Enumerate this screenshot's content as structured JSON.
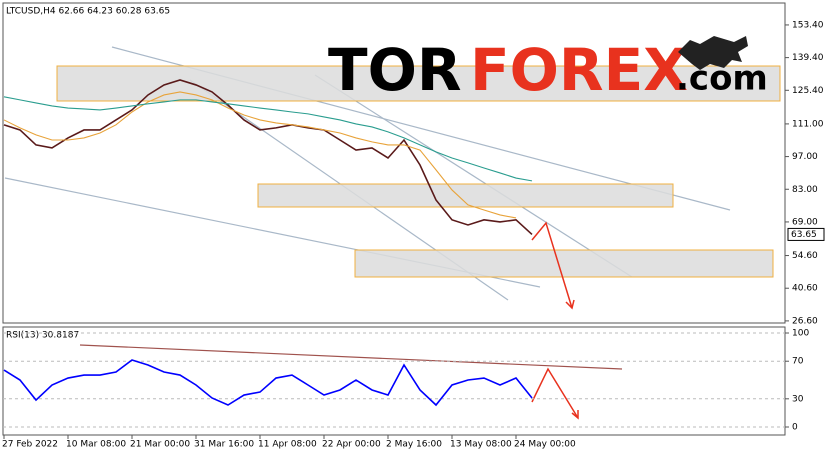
{
  "logo": {
    "part1": "TOR",
    "part2": "FOREX",
    "part3": ".com"
  },
  "chart_data": [
    {
      "type": "line",
      "title": "LTCUSD,H4 62.66 64.23 60.28 63.65",
      "categories": [
        "27 Feb 2022",
        null,
        null,
        null,
        "10 Mar 08:00",
        null,
        null,
        null,
        "21 Mar 00:00",
        null,
        null,
        null,
        "31 Mar 16:00",
        null,
        null,
        null,
        "11 Apr 08:00",
        null,
        null,
        null,
        "22 Apr 00:00",
        null,
        null,
        null,
        "2 May 16:00",
        null,
        null,
        null,
        "13 May 08:00",
        null,
        null,
        null,
        "24 May 00:00",
        null
      ],
      "series": [
        {
          "name": "LTCUSD",
          "color": "#5a1a1a",
          "values": [
            110.6,
            108.4,
            102.0,
            100.7,
            105.0,
            108.4,
            108.4,
            112.7,
            117.0,
            123.4,
            127.7,
            129.8,
            127.7,
            124.7,
            119.1,
            112.7,
            108.4,
            109.3,
            110.6,
            109.3,
            108.4,
            104.1,
            99.8,
            100.7,
            96.4,
            104.1,
            93.4,
            78.4,
            69.9,
            67.7,
            69.9,
            69.0,
            69.9,
            63.65
          ]
        },
        {
          "name": "MA fast",
          "color": "#e8a33a",
          "values": [
            112.7,
            109.3,
            106.3,
            104.1,
            104.1,
            105.0,
            107.1,
            110.6,
            116.1,
            120.4,
            123.4,
            124.7,
            123.4,
            121.3,
            117.8,
            114.8,
            112.7,
            111.4,
            110.6,
            109.7,
            108.4,
            107.1,
            105.0,
            103.3,
            102.0,
            102.0,
            99.8,
            91.3,
            82.7,
            76.3,
            74.1,
            72.0,
            70.7,
            null
          ]
        },
        {
          "name": "MA slow",
          "color": "#2a9d8f",
          "values": [
            122.6,
            121.3,
            120.0,
            118.7,
            117.8,
            117.4,
            117.0,
            117.8,
            118.7,
            119.6,
            120.4,
            121.3,
            121.3,
            120.4,
            119.6,
            118.7,
            117.8,
            117.0,
            116.1,
            115.3,
            114.0,
            112.7,
            111.0,
            109.7,
            107.6,
            105.0,
            102.0,
            99.0,
            96.4,
            94.3,
            92.1,
            90.0,
            87.8,
            86.6
          ]
        }
      ],
      "ylim": [
        25.7,
        162.8
      ],
      "yticks": [
        {
          "value": 153.4,
          "label": "153.40"
        },
        {
          "value": 139.4,
          "label": "139.40"
        },
        {
          "value": 125.4,
          "label": "125.40"
        },
        {
          "value": 111,
          "label": "111.00"
        },
        {
          "value": 97,
          "label": "97.00"
        },
        {
          "value": 83,
          "label": "83.00"
        },
        {
          "value": 69,
          "label": "69.00"
        },
        {
          "value": 54.6,
          "label": "54.60"
        },
        {
          "value": 40.6,
          "label": "40.60"
        },
        {
          "value": 26.6,
          "label": "26.60"
        }
      ]
    },
    {
      "type": "line",
      "title": "RSI(13) 30.8187",
      "series": [
        {
          "name": "RSI",
          "color": "#0000ff",
          "values": [
            60.6,
            50,
            28.7,
            44.7,
            52.1,
            55.3,
            55.3,
            58.5,
            71.3,
            66,
            58.5,
            55.3,
            44.7,
            30.9,
            23.4,
            34,
            37.2,
            52.1,
            55.3,
            44.7,
            34,
            39.4,
            50,
            39.4,
            34,
            66,
            39.4,
            23.4,
            44.7,
            50,
            52.1,
            44.7,
            52.1,
            30.8187
          ]
        }
      ],
      "ylim": [
        -8.5,
        106.4
      ],
      "yticks": [
        100,
        70,
        30,
        0
      ]
    }
  ]
}
